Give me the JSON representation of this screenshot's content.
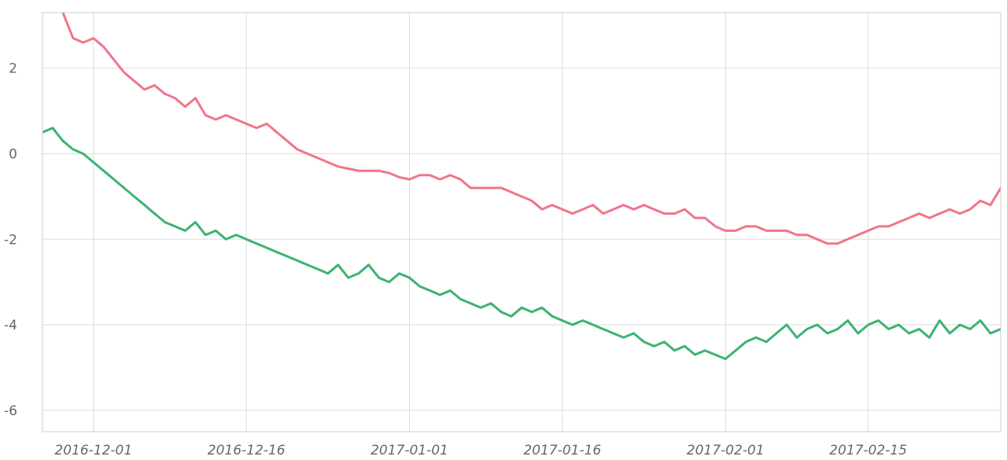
{
  "chart_data": {
    "type": "line",
    "title": "",
    "xlabel": "",
    "ylabel": "",
    "x_range": [
      "2016-11-26",
      "2017-02-28"
    ],
    "ylim": [
      -6.5,
      3.3
    ],
    "y_ticks": [
      {
        "value": 2,
        "label": "2"
      },
      {
        "value": 0,
        "label": "0"
      },
      {
        "value": -2,
        "label": "-2"
      },
      {
        "value": -4,
        "label": "-4"
      },
      {
        "value": -6,
        "label": "-6"
      }
    ],
    "x_ticks": [
      {
        "value": "2016-12-01",
        "label": "2016-12-01"
      },
      {
        "value": "2016-12-16",
        "label": "2016-12-16"
      },
      {
        "value": "2017-01-01",
        "label": "2017-01-01"
      },
      {
        "value": "2017-01-16",
        "label": "2017-01-16"
      },
      {
        "value": "2017-02-01",
        "label": "2017-02-01"
      },
      {
        "value": "2017-02-15",
        "label": "2017-02-15"
      }
    ],
    "grid": true,
    "legend": "none",
    "series": [
      {
        "color": "#f0758b",
        "points": [
          [
            "2016-11-28",
            3.3
          ],
          [
            "2016-11-29",
            2.7
          ],
          [
            "2016-11-30",
            2.6
          ],
          [
            "2016-12-01",
            2.7
          ],
          [
            "2016-12-02",
            2.5
          ],
          [
            "2016-12-03",
            2.2
          ],
          [
            "2016-12-04",
            1.9
          ],
          [
            "2016-12-05",
            1.7
          ],
          [
            "2016-12-06",
            1.5
          ],
          [
            "2016-12-07",
            1.6
          ],
          [
            "2016-12-08",
            1.4
          ],
          [
            "2016-12-09",
            1.3
          ],
          [
            "2016-12-10",
            1.1
          ],
          [
            "2016-12-11",
            1.3
          ],
          [
            "2016-12-12",
            0.9
          ],
          [
            "2016-12-13",
            0.8
          ],
          [
            "2016-12-14",
            0.9
          ],
          [
            "2016-12-15",
            0.8
          ],
          [
            "2016-12-16",
            0.7
          ],
          [
            "2016-12-17",
            0.6
          ],
          [
            "2016-12-18",
            0.7
          ],
          [
            "2016-12-19",
            0.5
          ],
          [
            "2016-12-20",
            0.3
          ],
          [
            "2016-12-21",
            0.1
          ],
          [
            "2016-12-22",
            0.0
          ],
          [
            "2016-12-23",
            -0.1
          ],
          [
            "2016-12-24",
            -0.2
          ],
          [
            "2016-12-25",
            -0.3
          ],
          [
            "2016-12-26",
            -0.35
          ],
          [
            "2016-12-27",
            -0.4
          ],
          [
            "2016-12-28",
            -0.4
          ],
          [
            "2016-12-29",
            -0.4
          ],
          [
            "2016-12-30",
            -0.45
          ],
          [
            "2016-12-31",
            -0.55
          ],
          [
            "2017-01-01",
            -0.6
          ],
          [
            "2017-01-02",
            -0.5
          ],
          [
            "2017-01-03",
            -0.5
          ],
          [
            "2017-01-04",
            -0.6
          ],
          [
            "2017-01-05",
            -0.5
          ],
          [
            "2017-01-06",
            -0.6
          ],
          [
            "2017-01-07",
            -0.8
          ],
          [
            "2017-01-08",
            -0.8
          ],
          [
            "2017-01-09",
            -0.8
          ],
          [
            "2017-01-10",
            -0.8
          ],
          [
            "2017-01-11",
            -0.9
          ],
          [
            "2017-01-12",
            -1.0
          ],
          [
            "2017-01-13",
            -1.1
          ],
          [
            "2017-01-14",
            -1.3
          ],
          [
            "2017-01-15",
            -1.2
          ],
          [
            "2017-01-16",
            -1.3
          ],
          [
            "2017-01-17",
            -1.4
          ],
          [
            "2017-01-18",
            -1.3
          ],
          [
            "2017-01-19",
            -1.2
          ],
          [
            "2017-01-20",
            -1.4
          ],
          [
            "2017-01-21",
            -1.3
          ],
          [
            "2017-01-22",
            -1.2
          ],
          [
            "2017-01-23",
            -1.3
          ],
          [
            "2017-01-24",
            -1.2
          ],
          [
            "2017-01-25",
            -1.3
          ],
          [
            "2017-01-26",
            -1.4
          ],
          [
            "2017-01-27",
            -1.4
          ],
          [
            "2017-01-28",
            -1.3
          ],
          [
            "2017-01-29",
            -1.5
          ],
          [
            "2017-01-30",
            -1.5
          ],
          [
            "2017-01-31",
            -1.7
          ],
          [
            "2017-02-01",
            -1.8
          ],
          [
            "2017-02-02",
            -1.8
          ],
          [
            "2017-02-03",
            -1.7
          ],
          [
            "2017-02-04",
            -1.7
          ],
          [
            "2017-02-05",
            -1.8
          ],
          [
            "2017-02-06",
            -1.8
          ],
          [
            "2017-02-07",
            -1.8
          ],
          [
            "2017-02-08",
            -1.9
          ],
          [
            "2017-02-09",
            -1.9
          ],
          [
            "2017-02-10",
            -2.0
          ],
          [
            "2017-02-11",
            -2.1
          ],
          [
            "2017-02-12",
            -2.1
          ],
          [
            "2017-02-13",
            -2.0
          ],
          [
            "2017-02-14",
            -1.9
          ],
          [
            "2017-02-15",
            -1.8
          ],
          [
            "2017-02-16",
            -1.7
          ],
          [
            "2017-02-17",
            -1.7
          ],
          [
            "2017-02-18",
            -1.6
          ],
          [
            "2017-02-19",
            -1.5
          ],
          [
            "2017-02-20",
            -1.4
          ],
          [
            "2017-02-21",
            -1.5
          ],
          [
            "2017-02-22",
            -1.4
          ],
          [
            "2017-02-23",
            -1.3
          ],
          [
            "2017-02-24",
            -1.4
          ],
          [
            "2017-02-25",
            -1.3
          ],
          [
            "2017-02-26",
            -1.1
          ],
          [
            "2017-02-27",
            -1.2
          ],
          [
            "2017-02-28",
            -0.8
          ]
        ]
      },
      {
        "color": "#3cb371",
        "points": [
          [
            "2016-11-26",
            0.5
          ],
          [
            "2016-11-27",
            0.6
          ],
          [
            "2016-11-28",
            0.3
          ],
          [
            "2016-11-29",
            0.1
          ],
          [
            "2016-11-30",
            0.0
          ],
          [
            "2016-12-01",
            -0.2
          ],
          [
            "2016-12-02",
            -0.4
          ],
          [
            "2016-12-03",
            -0.6
          ],
          [
            "2016-12-04",
            -0.8
          ],
          [
            "2016-12-05",
            -1.0
          ],
          [
            "2016-12-06",
            -1.2
          ],
          [
            "2016-12-07",
            -1.4
          ],
          [
            "2016-12-08",
            -1.6
          ],
          [
            "2016-12-09",
            -1.7
          ],
          [
            "2016-12-10",
            -1.8
          ],
          [
            "2016-12-11",
            -1.6
          ],
          [
            "2016-12-12",
            -1.9
          ],
          [
            "2016-12-13",
            -1.8
          ],
          [
            "2016-12-14",
            -2.0
          ],
          [
            "2016-12-15",
            -1.9
          ],
          [
            "2016-12-16",
            -2.0
          ],
          [
            "2016-12-17",
            -2.1
          ],
          [
            "2016-12-18",
            -2.2
          ],
          [
            "2016-12-19",
            -2.3
          ],
          [
            "2016-12-20",
            -2.4
          ],
          [
            "2016-12-21",
            -2.5
          ],
          [
            "2016-12-22",
            -2.6
          ],
          [
            "2016-12-23",
            -2.7
          ],
          [
            "2016-12-24",
            -2.8
          ],
          [
            "2016-12-25",
            -2.6
          ],
          [
            "2016-12-26",
            -2.9
          ],
          [
            "2016-12-27",
            -2.8
          ],
          [
            "2016-12-28",
            -2.6
          ],
          [
            "2016-12-29",
            -2.9
          ],
          [
            "2016-12-30",
            -3.0
          ],
          [
            "2016-12-31",
            -2.8
          ],
          [
            "2017-01-01",
            -2.9
          ],
          [
            "2017-01-02",
            -3.1
          ],
          [
            "2017-01-03",
            -3.2
          ],
          [
            "2017-01-04",
            -3.3
          ],
          [
            "2017-01-05",
            -3.2
          ],
          [
            "2017-01-06",
            -3.4
          ],
          [
            "2017-01-07",
            -3.5
          ],
          [
            "2017-01-08",
            -3.6
          ],
          [
            "2017-01-09",
            -3.5
          ],
          [
            "2017-01-10",
            -3.7
          ],
          [
            "2017-01-11",
            -3.8
          ],
          [
            "2017-01-12",
            -3.6
          ],
          [
            "2017-01-13",
            -3.7
          ],
          [
            "2017-01-14",
            -3.6
          ],
          [
            "2017-01-15",
            -3.8
          ],
          [
            "2017-01-16",
            -3.9
          ],
          [
            "2017-01-17",
            -4.0
          ],
          [
            "2017-01-18",
            -3.9
          ],
          [
            "2017-01-19",
            -4.0
          ],
          [
            "2017-01-20",
            -4.1
          ],
          [
            "2017-01-21",
            -4.2
          ],
          [
            "2017-01-22",
            -4.3
          ],
          [
            "2017-01-23",
            -4.2
          ],
          [
            "2017-01-24",
            -4.4
          ],
          [
            "2017-01-25",
            -4.5
          ],
          [
            "2017-01-26",
            -4.4
          ],
          [
            "2017-01-27",
            -4.6
          ],
          [
            "2017-01-28",
            -4.5
          ],
          [
            "2017-01-29",
            -4.7
          ],
          [
            "2017-01-30",
            -4.6
          ],
          [
            "2017-01-31",
            -4.7
          ],
          [
            "2017-02-01",
            -4.8
          ],
          [
            "2017-02-02",
            -4.6
          ],
          [
            "2017-02-03",
            -4.4
          ],
          [
            "2017-02-04",
            -4.3
          ],
          [
            "2017-02-05",
            -4.4
          ],
          [
            "2017-02-06",
            -4.2
          ],
          [
            "2017-02-07",
            -4.0
          ],
          [
            "2017-02-08",
            -4.3
          ],
          [
            "2017-02-09",
            -4.1
          ],
          [
            "2017-02-10",
            -4.0
          ],
          [
            "2017-02-11",
            -4.2
          ],
          [
            "2017-02-12",
            -4.1
          ],
          [
            "2017-02-13",
            -3.9
          ],
          [
            "2017-02-14",
            -4.2
          ],
          [
            "2017-02-15",
            -4.0
          ],
          [
            "2017-02-16",
            -3.9
          ],
          [
            "2017-02-17",
            -4.1
          ],
          [
            "2017-02-18",
            -4.0
          ],
          [
            "2017-02-19",
            -4.2
          ],
          [
            "2017-02-20",
            -4.1
          ],
          [
            "2017-02-21",
            -4.3
          ],
          [
            "2017-02-22",
            -3.9
          ],
          [
            "2017-02-23",
            -4.2
          ],
          [
            "2017-02-24",
            -4.0
          ],
          [
            "2017-02-25",
            -4.1
          ],
          [
            "2017-02-26",
            -3.9
          ],
          [
            "2017-02-27",
            -4.2
          ],
          [
            "2017-02-28",
            -4.1
          ]
        ]
      }
    ]
  }
}
